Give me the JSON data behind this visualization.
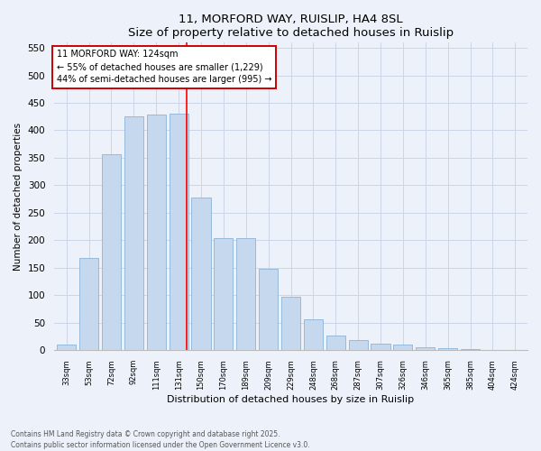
{
  "title1": "11, MORFORD WAY, RUISLIP, HA4 8SL",
  "title2": "Size of property relative to detached houses in Ruislip",
  "xlabel": "Distribution of detached houses by size in Ruislip",
  "ylabel": "Number of detached properties",
  "categories": [
    "33sqm",
    "53sqm",
    "72sqm",
    "92sqm",
    "111sqm",
    "131sqm",
    "150sqm",
    "170sqm",
    "189sqm",
    "209sqm",
    "229sqm",
    "248sqm",
    "268sqm",
    "287sqm",
    "307sqm",
    "326sqm",
    "346sqm",
    "365sqm",
    "385sqm",
    "404sqm",
    "424sqm"
  ],
  "values": [
    10,
    168,
    357,
    425,
    428,
    430,
    277,
    204,
    204,
    148,
    98,
    57,
    27,
    18,
    12,
    11,
    5,
    4,
    2,
    1,
    1
  ],
  "bar_color": "#c5d8ee",
  "bar_edge_color": "#8ab4d8",
  "grid_color": "#cdd6e8",
  "bg_color": "#edf2fa",
  "red_line_x": 5.35,
  "annotation_text": "11 MORFORD WAY: 124sqm\n← 55% of detached houses are smaller (1,229)\n44% of semi-detached houses are larger (995) →",
  "annotation_box_color": "#ffffff",
  "annotation_box_edge": "#cc0000",
  "ylim": [
    0,
    560
  ],
  "yticks": [
    0,
    50,
    100,
    150,
    200,
    250,
    300,
    350,
    400,
    450,
    500,
    550
  ],
  "footer1": "Contains HM Land Registry data © Crown copyright and database right 2025.",
  "footer2": "Contains public sector information licensed under the Open Government Licence v3.0."
}
